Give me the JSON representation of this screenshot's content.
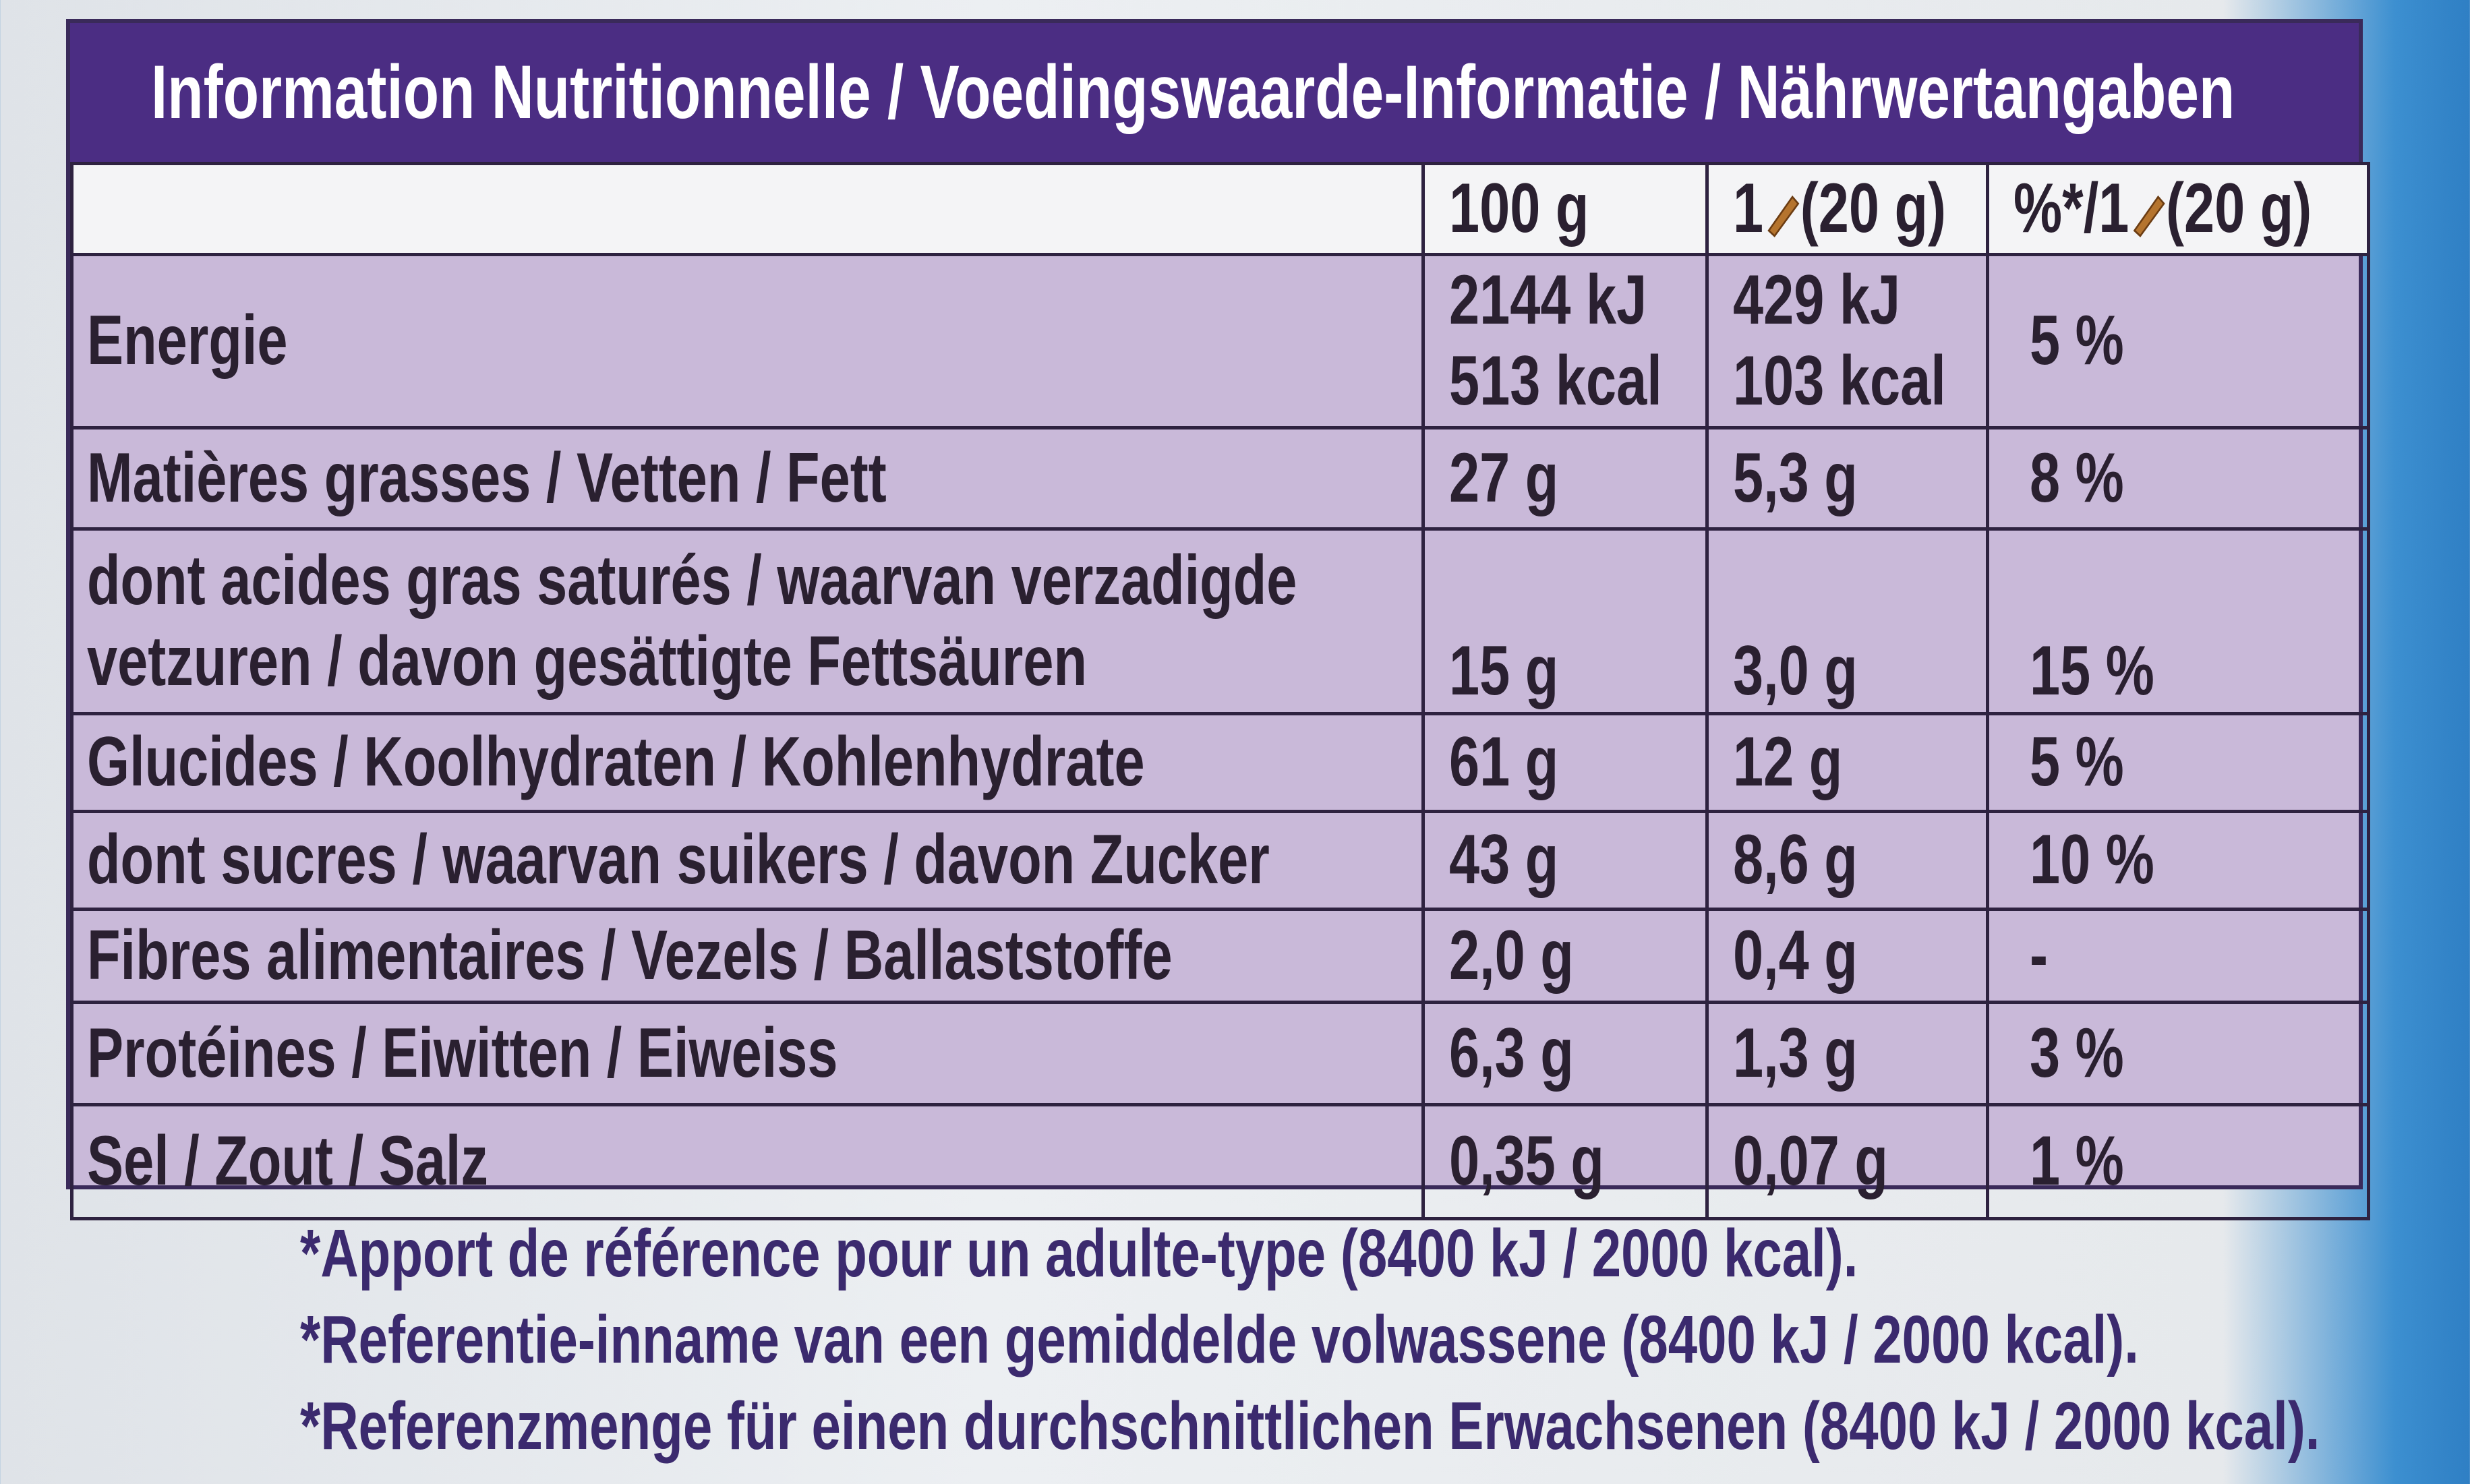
{
  "title": "Information Nutritionnelle / Voedingswaarde-Informatie / Nährwertangaben",
  "table": {
    "header": {
      "per_100g": "100 g",
      "per_portion": [
        "1",
        "(20 g)"
      ],
      "percent": [
        "%*/1",
        "(20 g)"
      ]
    },
    "rows": [
      {
        "label": "Energie",
        "per_100g": [
          "2144 kJ",
          "513 kcal"
        ],
        "per_portion": [
          "429 kJ",
          "103 kcal"
        ],
        "percent": "5 %"
      },
      {
        "label": "Matières grasses / Vetten / Fett",
        "per_100g": "27 g",
        "per_portion": "5,3 g",
        "percent": "8 %"
      },
      {
        "label": "dont acides gras saturés / waarvan verzadigde vetzuren / davon gesättigte Fettsäuren",
        "per_100g": "15 g",
        "per_portion": "3,0 g",
        "percent": "15 %"
      },
      {
        "label": "Glucides / Koolhydraten / Kohlenhydrate",
        "per_100g": "61 g",
        "per_portion": "12 g",
        "percent": "5 %"
      },
      {
        "label": "dont sucres / waarvan suikers / davon Zucker",
        "per_100g": "43 g",
        "per_portion": "8,6 g",
        "percent": "10 %"
      },
      {
        "label": "Fibres alimentaires / Vezels / Ballaststoffe",
        "per_100g": "2,0 g",
        "per_portion": "0,4 g",
        "percent": "-"
      },
      {
        "label": "Protéines / Eiwitten / Eiweiss",
        "per_100g": "6,3 g",
        "per_portion": "1,3 g",
        "percent": "3 %"
      },
      {
        "label": "Sel / Zout / Salz",
        "per_100g": "0,35 g",
        "per_portion": "0,07 g",
        "percent": "1 %"
      }
    ]
  },
  "footnotes": [
    "*Apport de référence pour un adulte-type (8400 kJ / 2000 kcal).",
    "*Referentie-inname van een gemiddelde volwassene (8400 kJ / 2000 kcal).",
    "*Referenzmenge für einen durchschnittlichen Erwachsenen (8400 kJ / 2000 kcal)."
  ]
}
